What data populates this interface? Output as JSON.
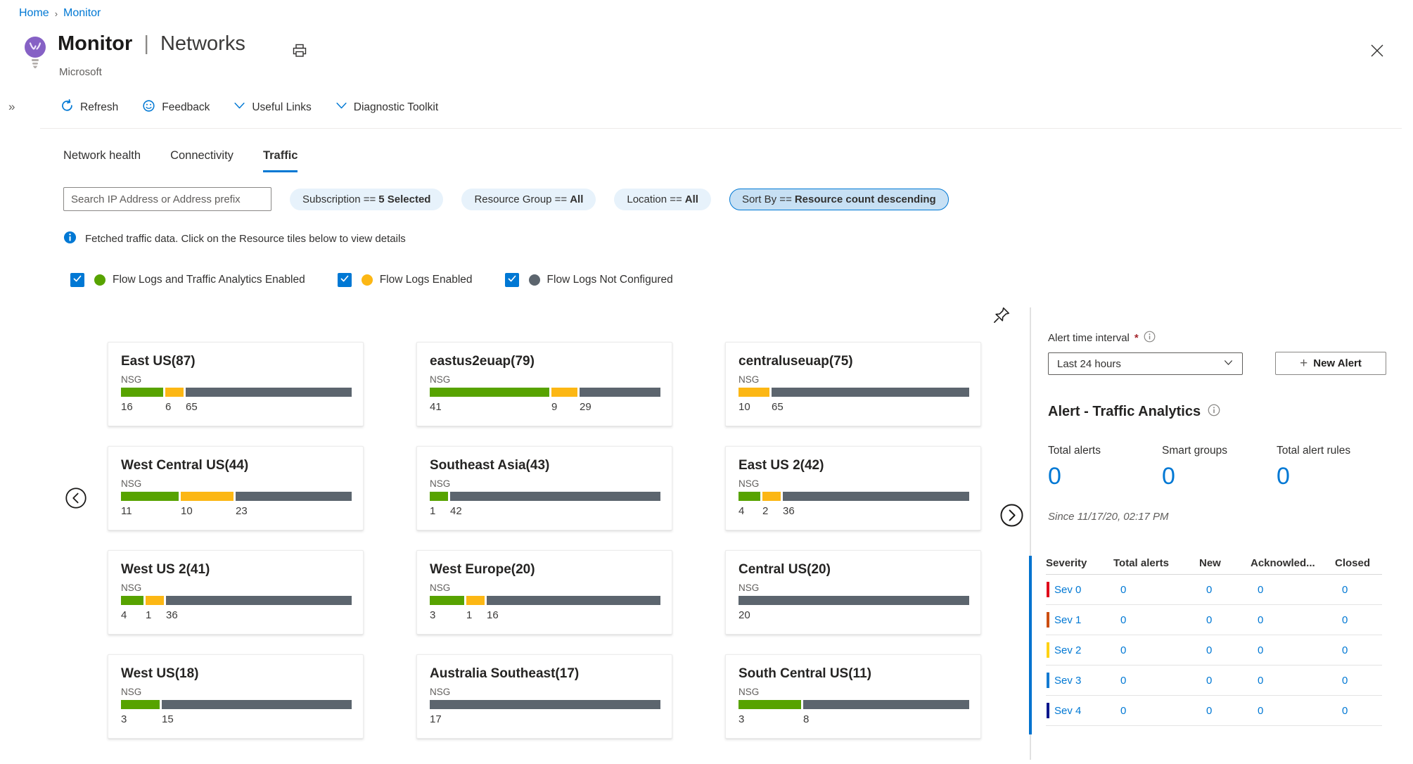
{
  "breadcrumb": {
    "items": [
      {
        "label": "Home"
      },
      {
        "label": "Monitor"
      }
    ]
  },
  "header": {
    "title_primary": "Monitor",
    "title_separator": "|",
    "title_secondary": "Networks",
    "subtitle": "Microsoft"
  },
  "toolbar": {
    "collapse_glyph": "»",
    "items": [
      {
        "label": "Refresh",
        "icon": "refresh-icon"
      },
      {
        "label": "Feedback",
        "icon": "smiley-icon"
      },
      {
        "label": "Useful Links",
        "icon": "chevron-down-icon"
      },
      {
        "label": "Diagnostic Toolkit",
        "icon": "chevron-down-icon"
      }
    ]
  },
  "tabs": [
    {
      "label": "Network health",
      "active": false
    },
    {
      "label": "Connectivity",
      "active": false
    },
    {
      "label": "Traffic",
      "active": true
    }
  ],
  "filters": {
    "search_placeholder": "Search IP Address or Address prefix",
    "pills": [
      {
        "prefix": "Subscription ==",
        "value": "5 Selected",
        "selected": false
      },
      {
        "prefix": "Resource Group ==",
        "value": "All",
        "selected": false
      },
      {
        "prefix": "Location ==",
        "value": "All",
        "selected": false
      },
      {
        "prefix": "Sort By ==",
        "value": "Resource count descending",
        "selected": true
      }
    ]
  },
  "info_banner": {
    "text": "Fetched traffic data. Click on the Resource tiles below to view details"
  },
  "colors": {
    "green": "#57a300",
    "yellow": "#fcb714",
    "gray": "#5c656e",
    "accent_blue": "#0078d4"
  },
  "legend": {
    "items": [
      {
        "label": "Flow Logs and Traffic Analytics Enabled",
        "color_key": "green",
        "checked": true
      },
      {
        "label": "Flow Logs Enabled",
        "color_key": "yellow",
        "checked": true
      },
      {
        "label": "Flow Logs Not Configured",
        "color_key": "gray",
        "checked": true
      }
    ]
  },
  "tiles": [
    {
      "title": "East US(87)",
      "metric_label": "NSG",
      "segments": [
        {
          "color_key": "green",
          "value": 16
        },
        {
          "color_key": "yellow",
          "value": 6
        },
        {
          "color_key": "gray",
          "value": 65
        }
      ]
    },
    {
      "title": "eastus2euap(79)",
      "metric_label": "NSG",
      "segments": [
        {
          "color_key": "green",
          "value": 41
        },
        {
          "color_key": "yellow",
          "value": 9
        },
        {
          "color_key": "gray",
          "value": 29
        }
      ]
    },
    {
      "title": "centraluseuap(75)",
      "metric_label": "NSG",
      "segments": [
        {
          "color_key": "yellow",
          "value": 10
        },
        {
          "color_key": "gray",
          "value": 65
        }
      ]
    },
    {
      "title": "West Central US(44)",
      "metric_label": "NSG",
      "segments": [
        {
          "color_key": "green",
          "value": 11
        },
        {
          "color_key": "yellow",
          "value": 10
        },
        {
          "color_key": "gray",
          "value": 23
        }
      ]
    },
    {
      "title": "Southeast Asia(43)",
      "metric_label": "NSG",
      "segments": [
        {
          "color_key": "green",
          "value": 1
        },
        {
          "color_key": "gray",
          "value": 42
        }
      ]
    },
    {
      "title": "East US 2(42)",
      "metric_label": "NSG",
      "segments": [
        {
          "color_key": "green",
          "value": 4
        },
        {
          "color_key": "yellow",
          "value": 2
        },
        {
          "color_key": "gray",
          "value": 36
        }
      ]
    },
    {
      "title": "West US 2(41)",
      "metric_label": "NSG",
      "segments": [
        {
          "color_key": "green",
          "value": 4
        },
        {
          "color_key": "yellow",
          "value": 1
        },
        {
          "color_key": "gray",
          "value": 36
        }
      ]
    },
    {
      "title": "West Europe(20)",
      "metric_label": "NSG",
      "segments": [
        {
          "color_key": "green",
          "value": 3
        },
        {
          "color_key": "yellow",
          "value": 1
        },
        {
          "color_key": "gray",
          "value": 16
        }
      ]
    },
    {
      "title": "Central US(20)",
      "metric_label": "NSG",
      "segments": [
        {
          "color_key": "gray",
          "value": 20
        }
      ]
    },
    {
      "title": "West US(18)",
      "metric_label": "NSG",
      "segments": [
        {
          "color_key": "green",
          "value": 3
        },
        {
          "color_key": "gray",
          "value": 15
        }
      ]
    },
    {
      "title": "Australia Southeast(17)",
      "metric_label": "NSG",
      "segments": [
        {
          "color_key": "gray",
          "value": 17
        }
      ]
    },
    {
      "title": "South Central US(11)",
      "metric_label": "NSG",
      "segments": [
        {
          "color_key": "green",
          "value": 3
        },
        {
          "color_key": "gray",
          "value": 8
        }
      ]
    }
  ],
  "alert_panel": {
    "time_interval_label": "Alert time interval",
    "required_marker": "*",
    "time_interval_value": "Last 24 hours",
    "new_alert_plus": "+",
    "new_alert_label": "New Alert",
    "section_title": "Alert - Traffic Analytics",
    "metrics": [
      {
        "label": "Total alerts",
        "value": "0"
      },
      {
        "label": "Smart groups",
        "value": "0"
      },
      {
        "label": "Total alert rules",
        "value": "0"
      }
    ],
    "since_text": "Since 11/17/20, 02:17 PM",
    "table": {
      "columns": [
        "Severity",
        "Total alerts",
        "New",
        "Acknowled...",
        "Closed"
      ],
      "rows": [
        {
          "severity": "Sev 0",
          "color": "#e00b1c",
          "total_alerts": "0",
          "new": "0",
          "acknowledged": "0",
          "closed": "0"
        },
        {
          "severity": "Sev 1",
          "color": "#cc4e11",
          "total_alerts": "0",
          "new": "0",
          "acknowledged": "0",
          "closed": "0"
        },
        {
          "severity": "Sev 2",
          "color": "#ffd213",
          "total_alerts": "0",
          "new": "0",
          "acknowledged": "0",
          "closed": "0"
        },
        {
          "severity": "Sev 3",
          "color": "#147bd1",
          "total_alerts": "0",
          "new": "0",
          "acknowledged": "0",
          "closed": "0"
        },
        {
          "severity": "Sev 4",
          "color": "#04168c",
          "total_alerts": "0",
          "new": "0",
          "acknowledged": "0",
          "closed": "0"
        }
      ]
    }
  }
}
